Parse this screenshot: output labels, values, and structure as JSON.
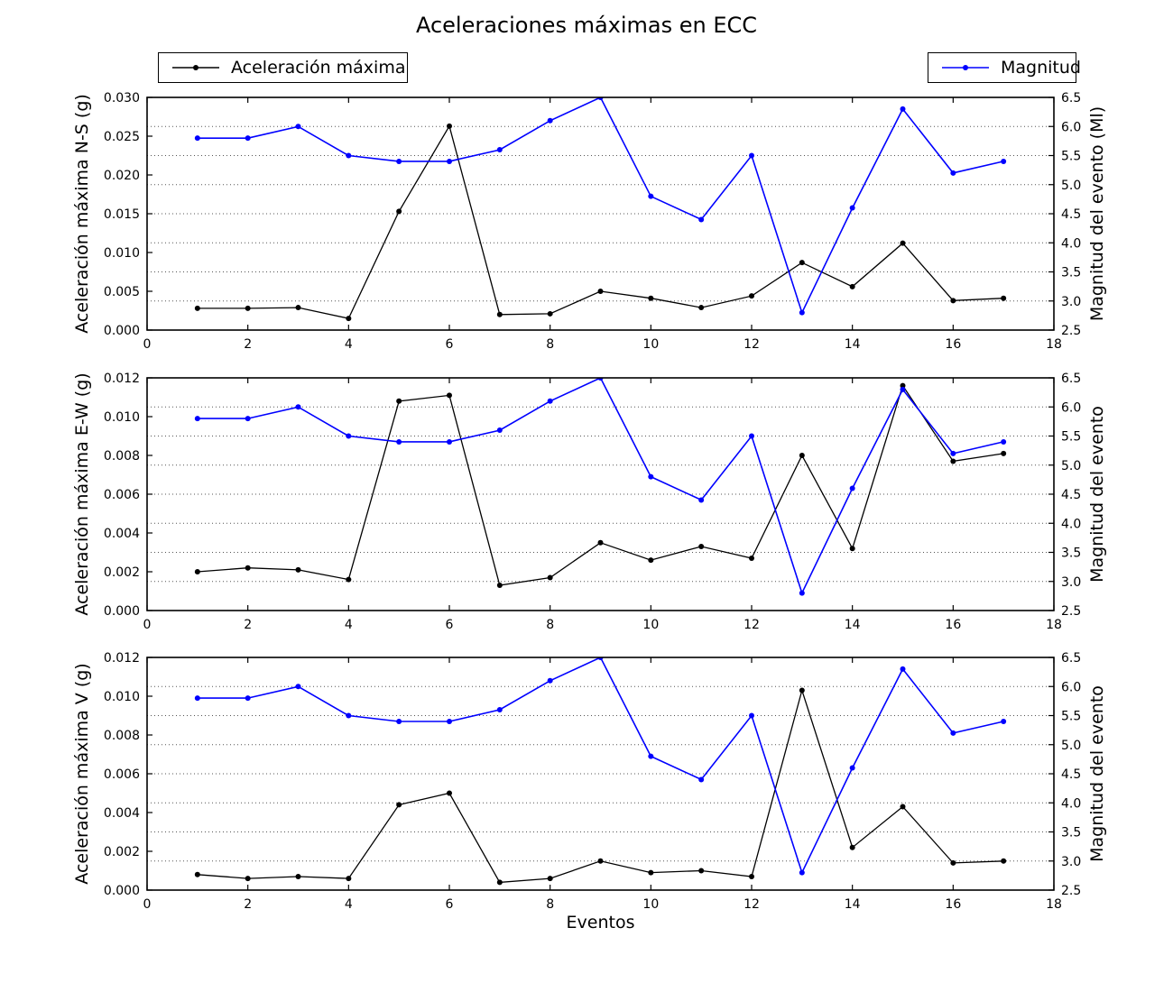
{
  "title": "Aceleraciones máximas en ECC",
  "xlabel": "Eventos",
  "legends": [
    {
      "label": "Aceleración máxima",
      "color": "#000000"
    },
    {
      "label": "Magnitud",
      "color": "#0000ff"
    }
  ],
  "colors": {
    "acceleration": "#000000",
    "magnitude": "#0000ff",
    "grid": "#555555",
    "axis": "#000000",
    "background": "#ffffff"
  },
  "chart_data": [
    {
      "type": "line",
      "name": "N-S",
      "ylabel_left": "Aceleración máxima N-S (g)",
      "ylabel_right": "Magnitud del evento (Ml)",
      "xlim": [
        0,
        18
      ],
      "ylim_left": [
        0.0,
        0.03
      ],
      "ylim_right": [
        2.5,
        6.5
      ],
      "xticks": [
        "0",
        "2",
        "4",
        "6",
        "8",
        "10",
        "12",
        "14",
        "16",
        "18"
      ],
      "yticks_left": [
        "0.000",
        "0.005",
        "0.010",
        "0.015",
        "0.020",
        "0.025",
        "0.030"
      ],
      "yticks_right": [
        "2.5",
        "3.0",
        "3.5",
        "4.0",
        "4.5",
        "5.0",
        "5.5",
        "6.0",
        "6.5"
      ],
      "grid": "horizontal dotted at right-axis ticks",
      "legend_position": "upper left / upper right (outside, above axes)",
      "x": [
        1,
        2,
        3,
        4,
        5,
        6,
        7,
        8,
        9,
        10,
        11,
        12,
        13,
        14,
        15,
        16,
        17
      ],
      "series": [
        {
          "name": "Aceleración máxima",
          "axis": "left",
          "color": "#000000",
          "values": [
            0.0028,
            0.0028,
            0.0029,
            0.0015,
            0.0153,
            0.0263,
            0.002,
            0.0021,
            0.005,
            0.0041,
            0.0029,
            0.0044,
            0.0087,
            0.0056,
            0.0112,
            0.0038,
            0.0041
          ]
        },
        {
          "name": "Magnitud",
          "axis": "right",
          "color": "#0000ff",
          "values": [
            5.8,
            5.8,
            6.0,
            5.5,
            5.4,
            5.4,
            5.6,
            6.1,
            6.5,
            4.8,
            4.4,
            5.5,
            2.8,
            4.6,
            6.3,
            5.2,
            5.4
          ]
        }
      ]
    },
    {
      "type": "line",
      "name": "E-W",
      "ylabel_left": "Aceleración máxima E-W (g)",
      "ylabel_right": "Magnitud del evento",
      "xlim": [
        0,
        18
      ],
      "ylim_left": [
        0.0,
        0.012
      ],
      "ylim_right": [
        2.5,
        6.5
      ],
      "xticks": [
        "0",
        "2",
        "4",
        "6",
        "8",
        "10",
        "12",
        "14",
        "16",
        "18"
      ],
      "yticks_left": [
        "0.000",
        "0.002",
        "0.004",
        "0.006",
        "0.008",
        "0.010",
        "0.012"
      ],
      "yticks_right": [
        "2.5",
        "3.0",
        "3.5",
        "4.0",
        "4.5",
        "5.0",
        "5.5",
        "6.0",
        "6.5"
      ],
      "grid": "horizontal dotted at right-axis ticks",
      "x": [
        1,
        2,
        3,
        4,
        5,
        6,
        7,
        8,
        9,
        10,
        11,
        12,
        13,
        14,
        15,
        16,
        17
      ],
      "series": [
        {
          "name": "Aceleración máxima",
          "axis": "left",
          "color": "#000000",
          "values": [
            0.002,
            0.0022,
            0.0021,
            0.0016,
            0.0108,
            0.0111,
            0.0013,
            0.0017,
            0.0035,
            0.0026,
            0.0033,
            0.0027,
            0.008,
            0.0032,
            0.0116,
            0.0077,
            0.0081
          ]
        },
        {
          "name": "Magnitud",
          "axis": "right",
          "color": "#0000ff",
          "values": [
            5.8,
            5.8,
            6.0,
            5.5,
            5.4,
            5.4,
            5.6,
            6.1,
            6.5,
            4.8,
            4.4,
            5.5,
            2.8,
            4.6,
            6.3,
            5.2,
            5.4
          ]
        }
      ]
    },
    {
      "type": "line",
      "name": "V",
      "ylabel_left": "Aceleración máxima V (g)",
      "ylabel_right": "Magnitud del evento",
      "xlim": [
        0,
        18
      ],
      "ylim_left": [
        0.0,
        0.012
      ],
      "ylim_right": [
        2.5,
        6.5
      ],
      "xticks": [
        "0",
        "2",
        "4",
        "6",
        "8",
        "10",
        "12",
        "14",
        "16",
        "18"
      ],
      "yticks_left": [
        "0.000",
        "0.002",
        "0.004",
        "0.006",
        "0.008",
        "0.010",
        "0.012"
      ],
      "yticks_right": [
        "2.5",
        "3.0",
        "3.5",
        "4.0",
        "4.5",
        "5.0",
        "5.5",
        "6.0",
        "6.5"
      ],
      "grid": "horizontal dotted at right-axis ticks",
      "x": [
        1,
        2,
        3,
        4,
        5,
        6,
        7,
        8,
        9,
        10,
        11,
        12,
        13,
        14,
        15,
        16,
        17
      ],
      "series": [
        {
          "name": "Aceleración máxima",
          "axis": "left",
          "color": "#000000",
          "values": [
            0.0008,
            0.0006,
            0.0007,
            0.0006,
            0.0044,
            0.005,
            0.0004,
            0.0006,
            0.0015,
            0.0009,
            0.001,
            0.0007,
            0.0103,
            0.0022,
            0.0043,
            0.0014,
            0.0015
          ]
        },
        {
          "name": "Magnitud",
          "axis": "right",
          "color": "#0000ff",
          "values": [
            5.8,
            5.8,
            6.0,
            5.5,
            5.4,
            5.4,
            5.6,
            6.1,
            6.5,
            4.8,
            4.4,
            5.5,
            2.8,
            4.6,
            6.3,
            5.2,
            5.4
          ]
        }
      ]
    }
  ]
}
